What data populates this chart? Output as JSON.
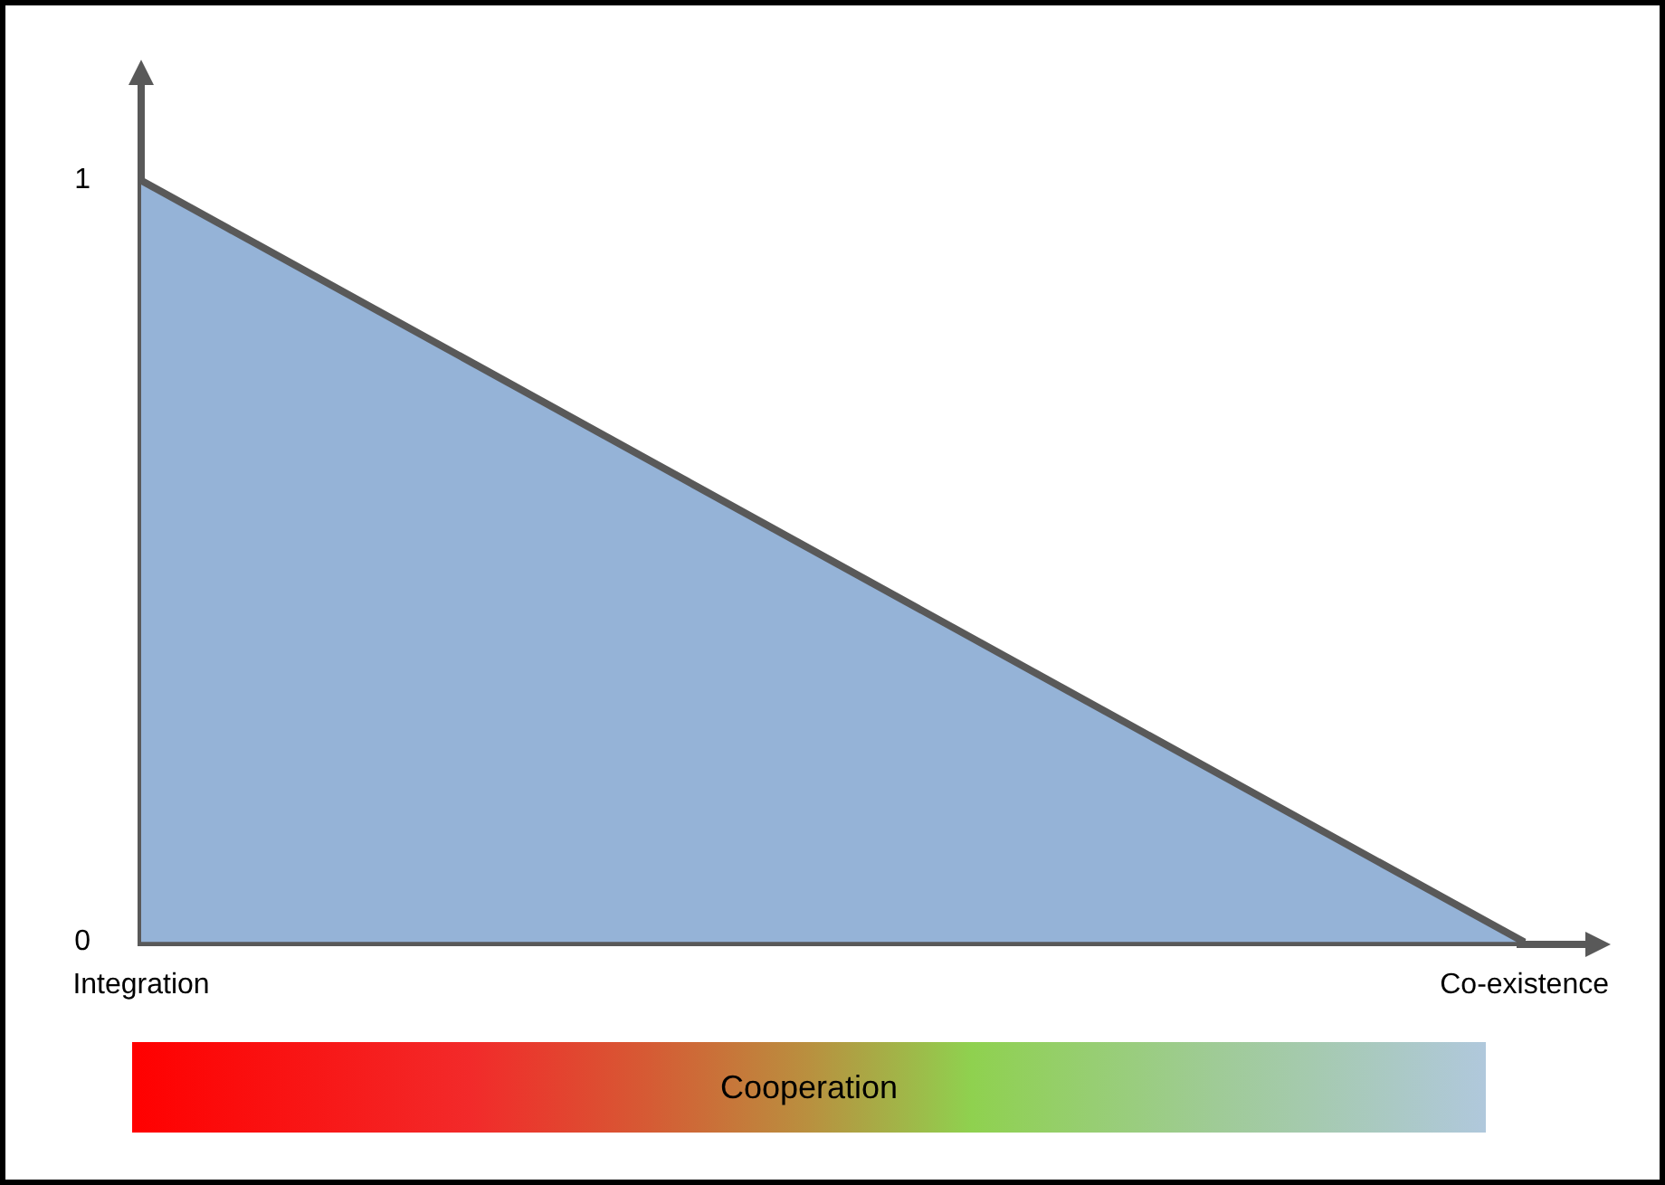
{
  "chart_data": {
    "type": "area",
    "categories": [
      "Integration",
      "Co-existence"
    ],
    "series": [
      {
        "color": "#95b3d7",
        "values": [
          1,
          0
        ]
      }
    ],
    "ylim": [
      0,
      1.13
    ],
    "yticks": [
      0,
      1
    ],
    "grid": false,
    "legend": false,
    "annotations": [
      "Cooperation"
    ]
  }
}
